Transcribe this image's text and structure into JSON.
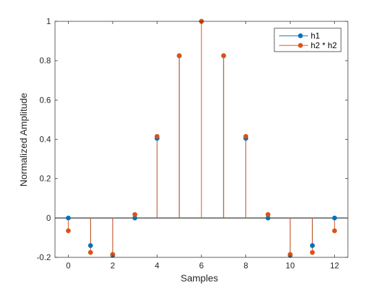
{
  "chart_data": {
    "type": "stem",
    "xlabel": "Samples",
    "ylabel": "Normalized Amplitude",
    "xlim": [
      -0.6,
      12.6
    ],
    "ylim": [
      -0.2,
      1.0
    ],
    "xticks": [
      0,
      2,
      4,
      6,
      8,
      10,
      12
    ],
    "yticks": [
      -0.2,
      0,
      0.2,
      0.4,
      0.6,
      0.8,
      1
    ],
    "ytick_labels": [
      "-0.2",
      "0",
      "0.2",
      "0.4",
      "0.6",
      "0.8",
      "1"
    ],
    "legend_position": "top-right",
    "series": [
      {
        "name": "h1",
        "color": "#0072BD",
        "x": [
          0,
          1,
          2,
          3,
          4,
          5,
          6,
          7,
          8,
          9,
          10,
          11,
          12
        ],
        "values": [
          0,
          -0.14,
          -0.19,
          0,
          0.405,
          0.825,
          1.0,
          0.825,
          0.405,
          0,
          -0.19,
          -0.14,
          0
        ]
      },
      {
        "name": "h2 * h2",
        "color": "#D95319",
        "x": [
          0,
          1,
          2,
          3,
          4,
          5,
          6,
          7,
          8,
          9,
          10,
          11,
          12
        ],
        "values": [
          -0.065,
          -0.175,
          -0.185,
          0.018,
          0.415,
          0.825,
          1.0,
          0.825,
          0.415,
          0.018,
          -0.185,
          -0.175,
          -0.065
        ]
      }
    ]
  }
}
